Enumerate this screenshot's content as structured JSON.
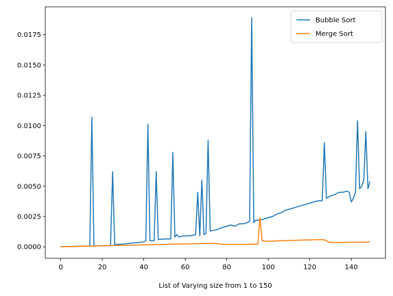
{
  "chart_data": {
    "type": "line",
    "title": "",
    "xlabel": "List of Varying size from 1 to 150",
    "ylabel": "",
    "xlim": [
      -7.45,
      156.45
    ],
    "ylim": [
      -0.00095,
      0.0198
    ],
    "xticks": [
      0,
      20,
      40,
      60,
      80,
      100,
      120,
      140
    ],
    "xtick_labels": [
      "0",
      "20",
      "40",
      "60",
      "80",
      "100",
      "120",
      "140"
    ],
    "yticks": [
      0.0,
      0.0025,
      0.005,
      0.0075,
      0.01,
      0.0125,
      0.015,
      0.0175
    ],
    "ytick_labels": [
      "0.0000",
      "0.0025",
      "0.0050",
      "0.0075",
      "0.0100",
      "0.0125",
      "0.0150",
      "0.0175"
    ],
    "grid": false,
    "legend_position": "top-right",
    "series": [
      {
        "name": "Bubble Sort",
        "color": "#1f77b4",
        "points": [
          [
            0,
            1e-05
          ],
          [
            5,
            3e-05
          ],
          [
            10,
            5e-05
          ],
          [
            14,
            6e-05
          ],
          [
            15,
            0.0107
          ],
          [
            16,
            8e-05
          ],
          [
            20,
            9e-05
          ],
          [
            24,
            0.0001
          ],
          [
            25,
            0.0062
          ],
          [
            26,
            0.00018
          ],
          [
            30,
            0.00022
          ],
          [
            34,
            0.0003
          ],
          [
            37,
            0.00035
          ],
          [
            40,
            0.0004
          ],
          [
            41,
            0.0005
          ],
          [
            42,
            0.0101
          ],
          [
            43,
            0.0005
          ],
          [
            45,
            0.0005
          ],
          [
            46,
            0.0062
          ],
          [
            47,
            0.0006
          ],
          [
            50,
            0.00065
          ],
          [
            52,
            0.00065
          ],
          [
            53,
            0.00065
          ],
          [
            54,
            0.0078
          ],
          [
            55,
            0.0008
          ],
          [
            56,
            0.001
          ],
          [
            57,
            0.0008
          ],
          [
            59,
            0.0009
          ],
          [
            62,
            0.0009
          ],
          [
            65,
            0.001
          ],
          [
            66,
            0.0045
          ],
          [
            67,
            0.0009
          ],
          [
            68,
            0.0055
          ],
          [
            69,
            0.001
          ],
          [
            70,
            0.0011
          ],
          [
            71,
            0.0088
          ],
          [
            72,
            0.0013
          ],
          [
            75,
            0.0014
          ],
          [
            78,
            0.0016
          ],
          [
            80,
            0.0017
          ],
          [
            82,
            0.0018
          ],
          [
            84,
            0.0017
          ],
          [
            86,
            0.0019
          ],
          [
            88,
            0.0019
          ],
          [
            90,
            0.002
          ],
          [
            91,
            0.0021
          ],
          [
            92,
            0.0189
          ],
          [
            93,
            0.002
          ],
          [
            94,
            0.0022
          ],
          [
            96,
            0.0022
          ],
          [
            98,
            0.0023
          ],
          [
            100,
            0.0024
          ],
          [
            102,
            0.0025
          ],
          [
            104,
            0.0027
          ],
          [
            106,
            0.0028
          ],
          [
            108,
            0.003
          ],
          [
            110,
            0.0031
          ],
          [
            112,
            0.0032
          ],
          [
            114,
            0.0033
          ],
          [
            116,
            0.0034
          ],
          [
            118,
            0.0035
          ],
          [
            120,
            0.0036
          ],
          [
            122,
            0.0037
          ],
          [
            124,
            0.0038
          ],
          [
            126,
            0.0038
          ],
          [
            127,
            0.0086
          ],
          [
            128,
            0.004
          ],
          [
            130,
            0.0042
          ],
          [
            132,
            0.0043
          ],
          [
            134,
            0.0045
          ],
          [
            136,
            0.0045
          ],
          [
            138,
            0.0046
          ],
          [
            139,
            0.0045
          ],
          [
            140,
            0.0037
          ],
          [
            141,
            0.004
          ],
          [
            142,
            0.0045
          ],
          [
            143,
            0.0104
          ],
          [
            144,
            0.0048
          ],
          [
            145,
            0.005
          ],
          [
            146,
            0.0055
          ],
          [
            147,
            0.0095
          ],
          [
            148,
            0.0048
          ],
          [
            149,
            0.0054
          ]
        ]
      },
      {
        "name": "Merge Sort",
        "color": "#ff7f0e",
        "points": [
          [
            0,
            1e-05
          ],
          [
            5,
            2e-05
          ],
          [
            10,
            4e-05
          ],
          [
            15,
            6e-05
          ],
          [
            20,
            8e-05
          ],
          [
            25,
            0.0001
          ],
          [
            30,
            0.00012
          ],
          [
            35,
            0.00014
          ],
          [
            40,
            0.00016
          ],
          [
            45,
            0.00018
          ],
          [
            50,
            0.0002
          ],
          [
            55,
            0.00022
          ],
          [
            60,
            0.00024
          ],
          [
            65,
            0.00026
          ],
          [
            70,
            0.00028
          ],
          [
            75,
            0.00027
          ],
          [
            78,
            0.0002
          ],
          [
            80,
            0.0002
          ],
          [
            85,
            0.0002
          ],
          [
            90,
            0.0002
          ],
          [
            95,
            0.00022
          ],
          [
            96,
            0.0024
          ],
          [
            97,
            0.0005
          ],
          [
            100,
            0.00045
          ],
          [
            105,
            0.0005
          ],
          [
            110,
            0.00052
          ],
          [
            115,
            0.00055
          ],
          [
            120,
            0.00057
          ],
          [
            125,
            0.0006
          ],
          [
            127,
            0.00058
          ],
          [
            129,
            0.0004
          ],
          [
            130,
            0.00035
          ],
          [
            135,
            0.00035
          ],
          [
            140,
            0.00038
          ],
          [
            145,
            0.00038
          ],
          [
            149,
            0.0004
          ]
        ]
      }
    ]
  }
}
